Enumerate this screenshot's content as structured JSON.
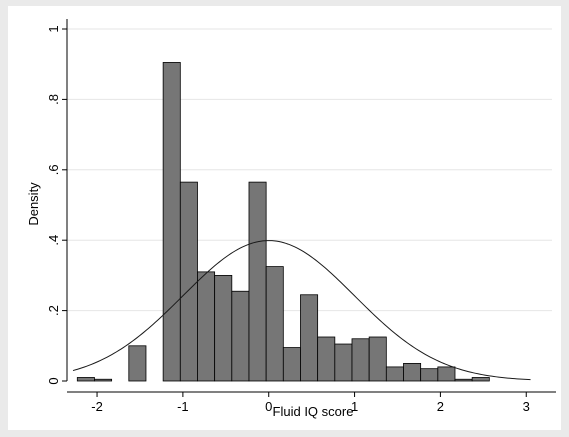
{
  "chart_data": {
    "type": "bar",
    "subtype": "histogram-with-normal-density",
    "xlabel": "Fluid IQ score",
    "ylabel": "Density",
    "xlim": [
      -2.35,
      3.3
    ],
    "ylim": [
      0,
      1.0
    ],
    "xticks": [
      -2,
      -1,
      0,
      1,
      2,
      3
    ],
    "xtick_labels": [
      "-2",
      "-1",
      "0",
      "1",
      "2",
      "3"
    ],
    "yticks": [
      0,
      0.2,
      0.4,
      0.6,
      0.8,
      1
    ],
    "ytick_labels": [
      "0",
      ".2",
      ".4",
      ".6",
      ".8",
      "1"
    ],
    "grid": true,
    "legend": "none",
    "bin_width": 0.2,
    "bars": [
      {
        "x0": -2.23,
        "x1": -2.03,
        "density": 0.01
      },
      {
        "x0": -2.03,
        "x1": -1.83,
        "density": 0.005
      },
      {
        "x0": -1.63,
        "x1": -1.43,
        "density": 0.1
      },
      {
        "x0": -1.23,
        "x1": -1.03,
        "density": 0.905
      },
      {
        "x0": -1.03,
        "x1": -0.83,
        "density": 0.565
      },
      {
        "x0": -0.83,
        "x1": -0.63,
        "density": 0.31
      },
      {
        "x0": -0.63,
        "x1": -0.43,
        "density": 0.3
      },
      {
        "x0": -0.43,
        "x1": -0.23,
        "density": 0.255
      },
      {
        "x0": -0.23,
        "x1": -0.03,
        "density": 0.565
      },
      {
        "x0": -0.03,
        "x1": 0.17,
        "density": 0.325
      },
      {
        "x0": 0.17,
        "x1": 0.37,
        "density": 0.095
      },
      {
        "x0": 0.37,
        "x1": 0.57,
        "density": 0.245
      },
      {
        "x0": 0.57,
        "x1": 0.77,
        "density": 0.125
      },
      {
        "x0": 0.77,
        "x1": 0.97,
        "density": 0.105
      },
      {
        "x0": 0.97,
        "x1": 1.17,
        "density": 0.12
      },
      {
        "x0": 1.17,
        "x1": 1.37,
        "density": 0.125
      },
      {
        "x0": 1.37,
        "x1": 1.57,
        "density": 0.04
      },
      {
        "x0": 1.57,
        "x1": 1.77,
        "density": 0.05
      },
      {
        "x0": 1.77,
        "x1": 1.97,
        "density": 0.035
      },
      {
        "x0": 1.97,
        "x1": 2.17,
        "density": 0.04
      },
      {
        "x0": 2.17,
        "x1": 2.37,
        "density": 0.005
      },
      {
        "x0": 2.37,
        "x1": 2.57,
        "density": 0.01
      }
    ],
    "curve": {
      "type": "normal",
      "mean": 0,
      "sd": 1,
      "x_range": [
        -2.28,
        3.05
      ]
    },
    "colors": {
      "bar_fill": "#767676",
      "bar_stroke": "#000000",
      "curve": "#1a1a1a",
      "grid": "#e6e6e6",
      "plot_bg": "#ffffff",
      "outer_bg": "#eaeaea"
    }
  }
}
